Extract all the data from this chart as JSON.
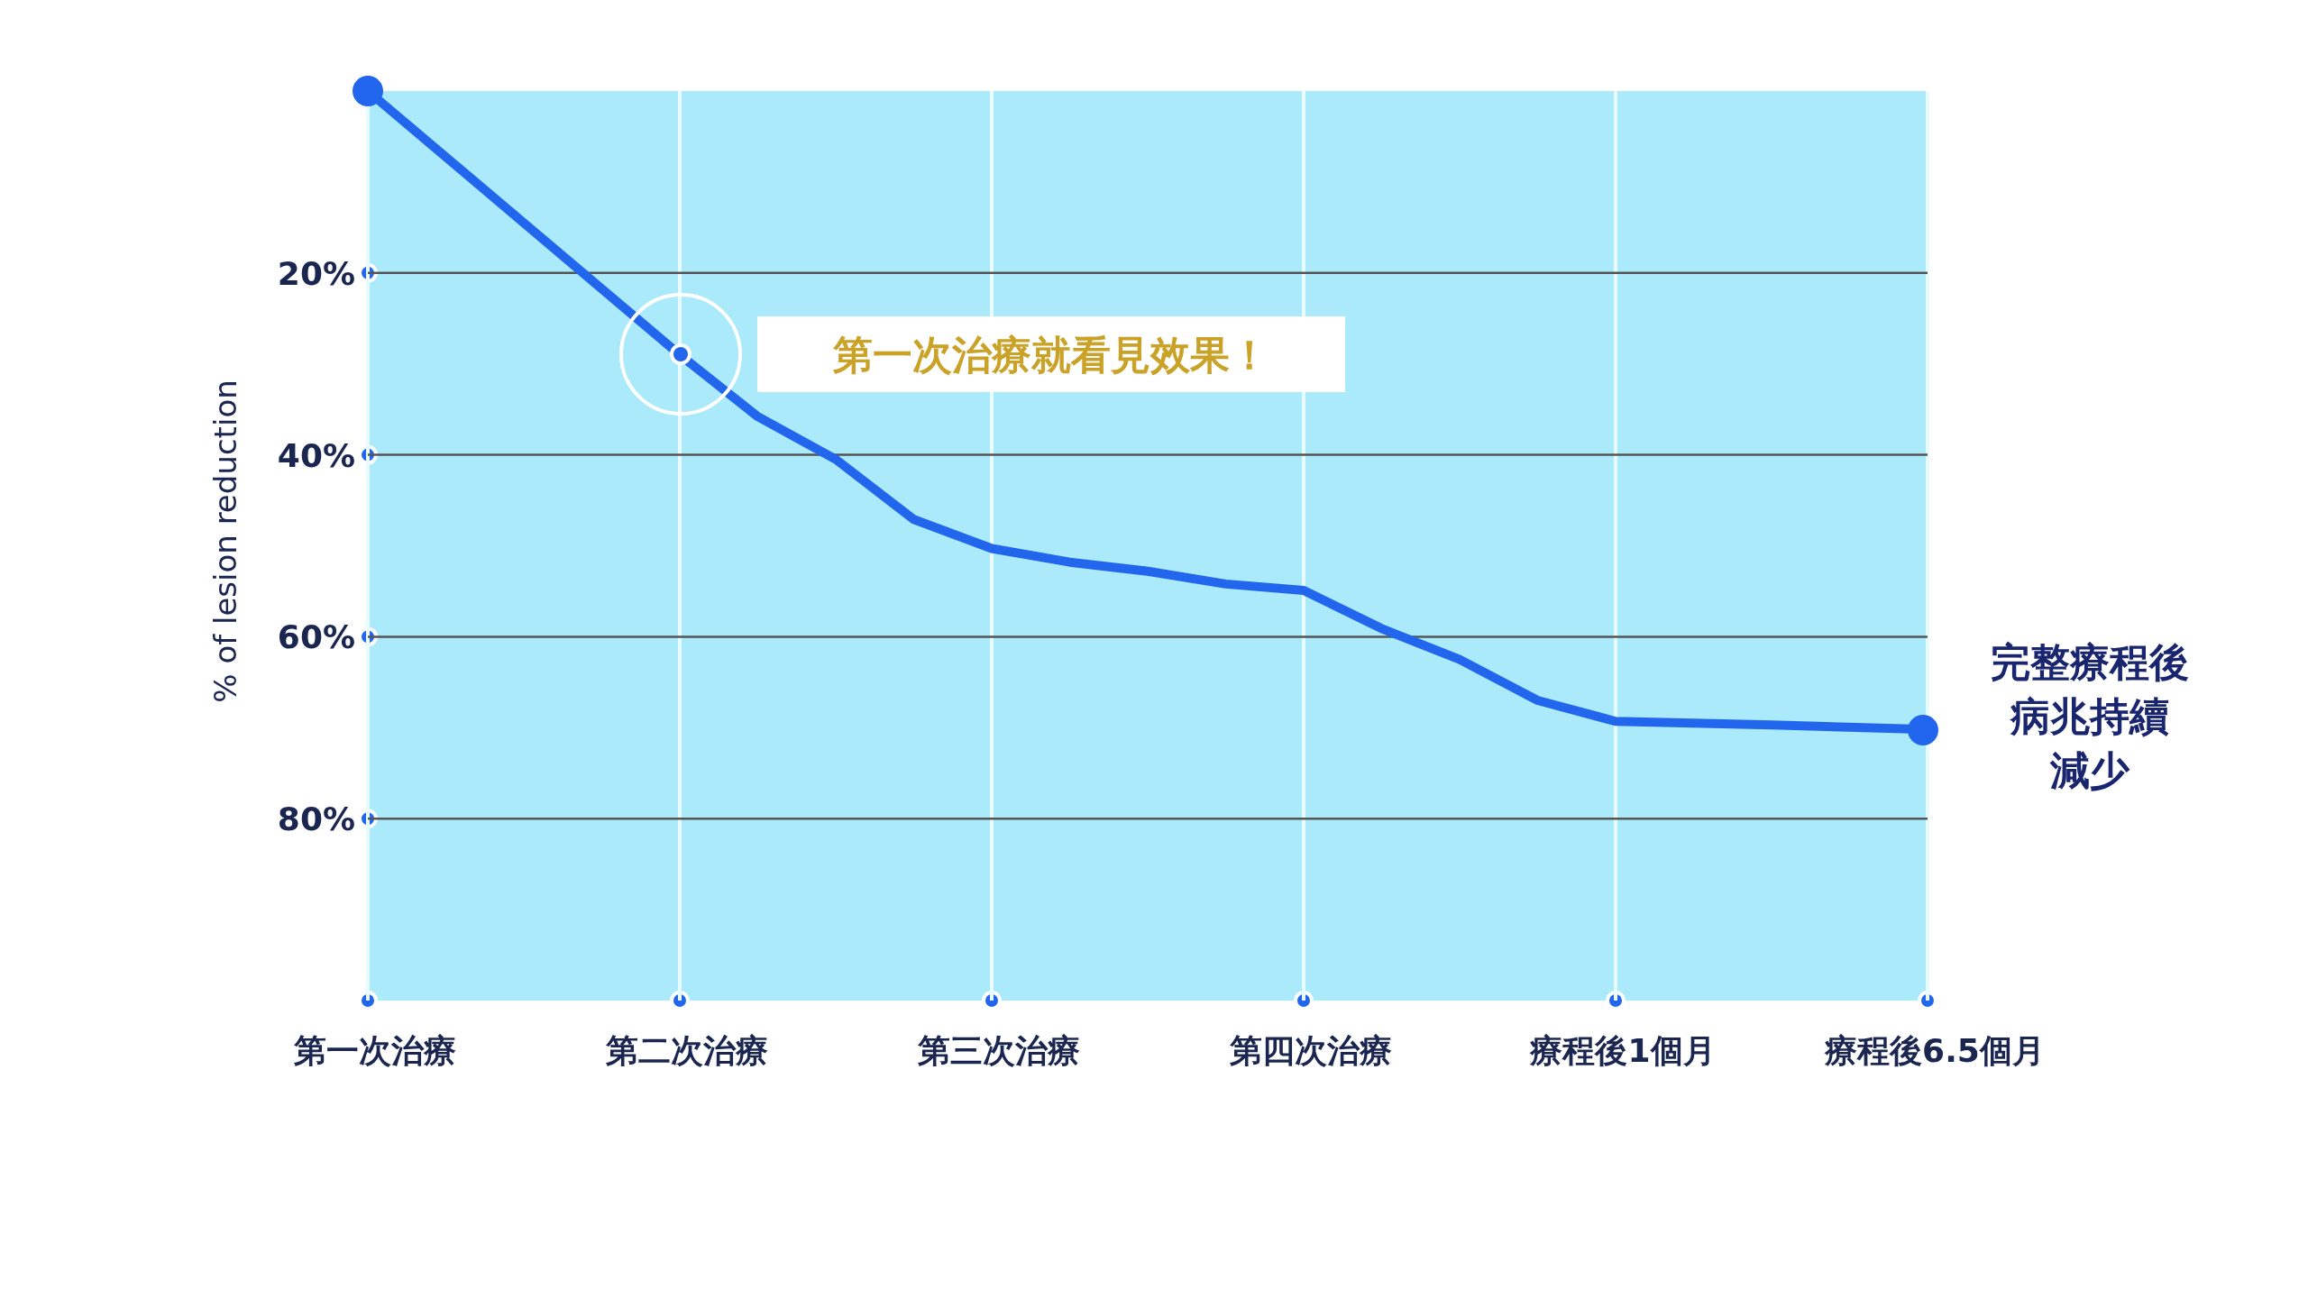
{
  "chart_data": {
    "type": "line",
    "ylabel": "%  of  lesion reduction",
    "categories": [
      "第一次治療",
      null,
      null,
      null,
      "第二次治療",
      null,
      null,
      null,
      "第三次治療",
      null,
      null,
      null,
      "第四次治療",
      null,
      null,
      null,
      "療程後1個月",
      null,
      null,
      null,
      "療程後6.5個月"
    ],
    "series": [
      {
        "color": "#2266ee",
        "values": [
          0,
          null,
          null,
          null,
          29,
          35.8,
          40.5,
          47.1,
          50.3,
          51.8,
          52.8,
          54.2,
          54.9,
          59.1,
          62.5,
          67.0,
          69.3,
          null,
          69.7,
          null,
          70.2
        ]
      }
    ],
    "ylim": [
      100,
      0
    ],
    "yticks": [
      {
        "value": 0,
        "label": null
      },
      {
        "value": 20,
        "label": "20%"
      },
      {
        "value": 40,
        "label": "40%"
      },
      {
        "value": 60,
        "label": "60%"
      },
      {
        "value": 80,
        "label": "80%"
      },
      {
        "value": 100,
        "label": null
      }
    ],
    "grid": true,
    "annotations": [
      "第一次治療就看見效果！",
      "完整療程後",
      "病兆持續",
      "減少"
    ]
  }
}
